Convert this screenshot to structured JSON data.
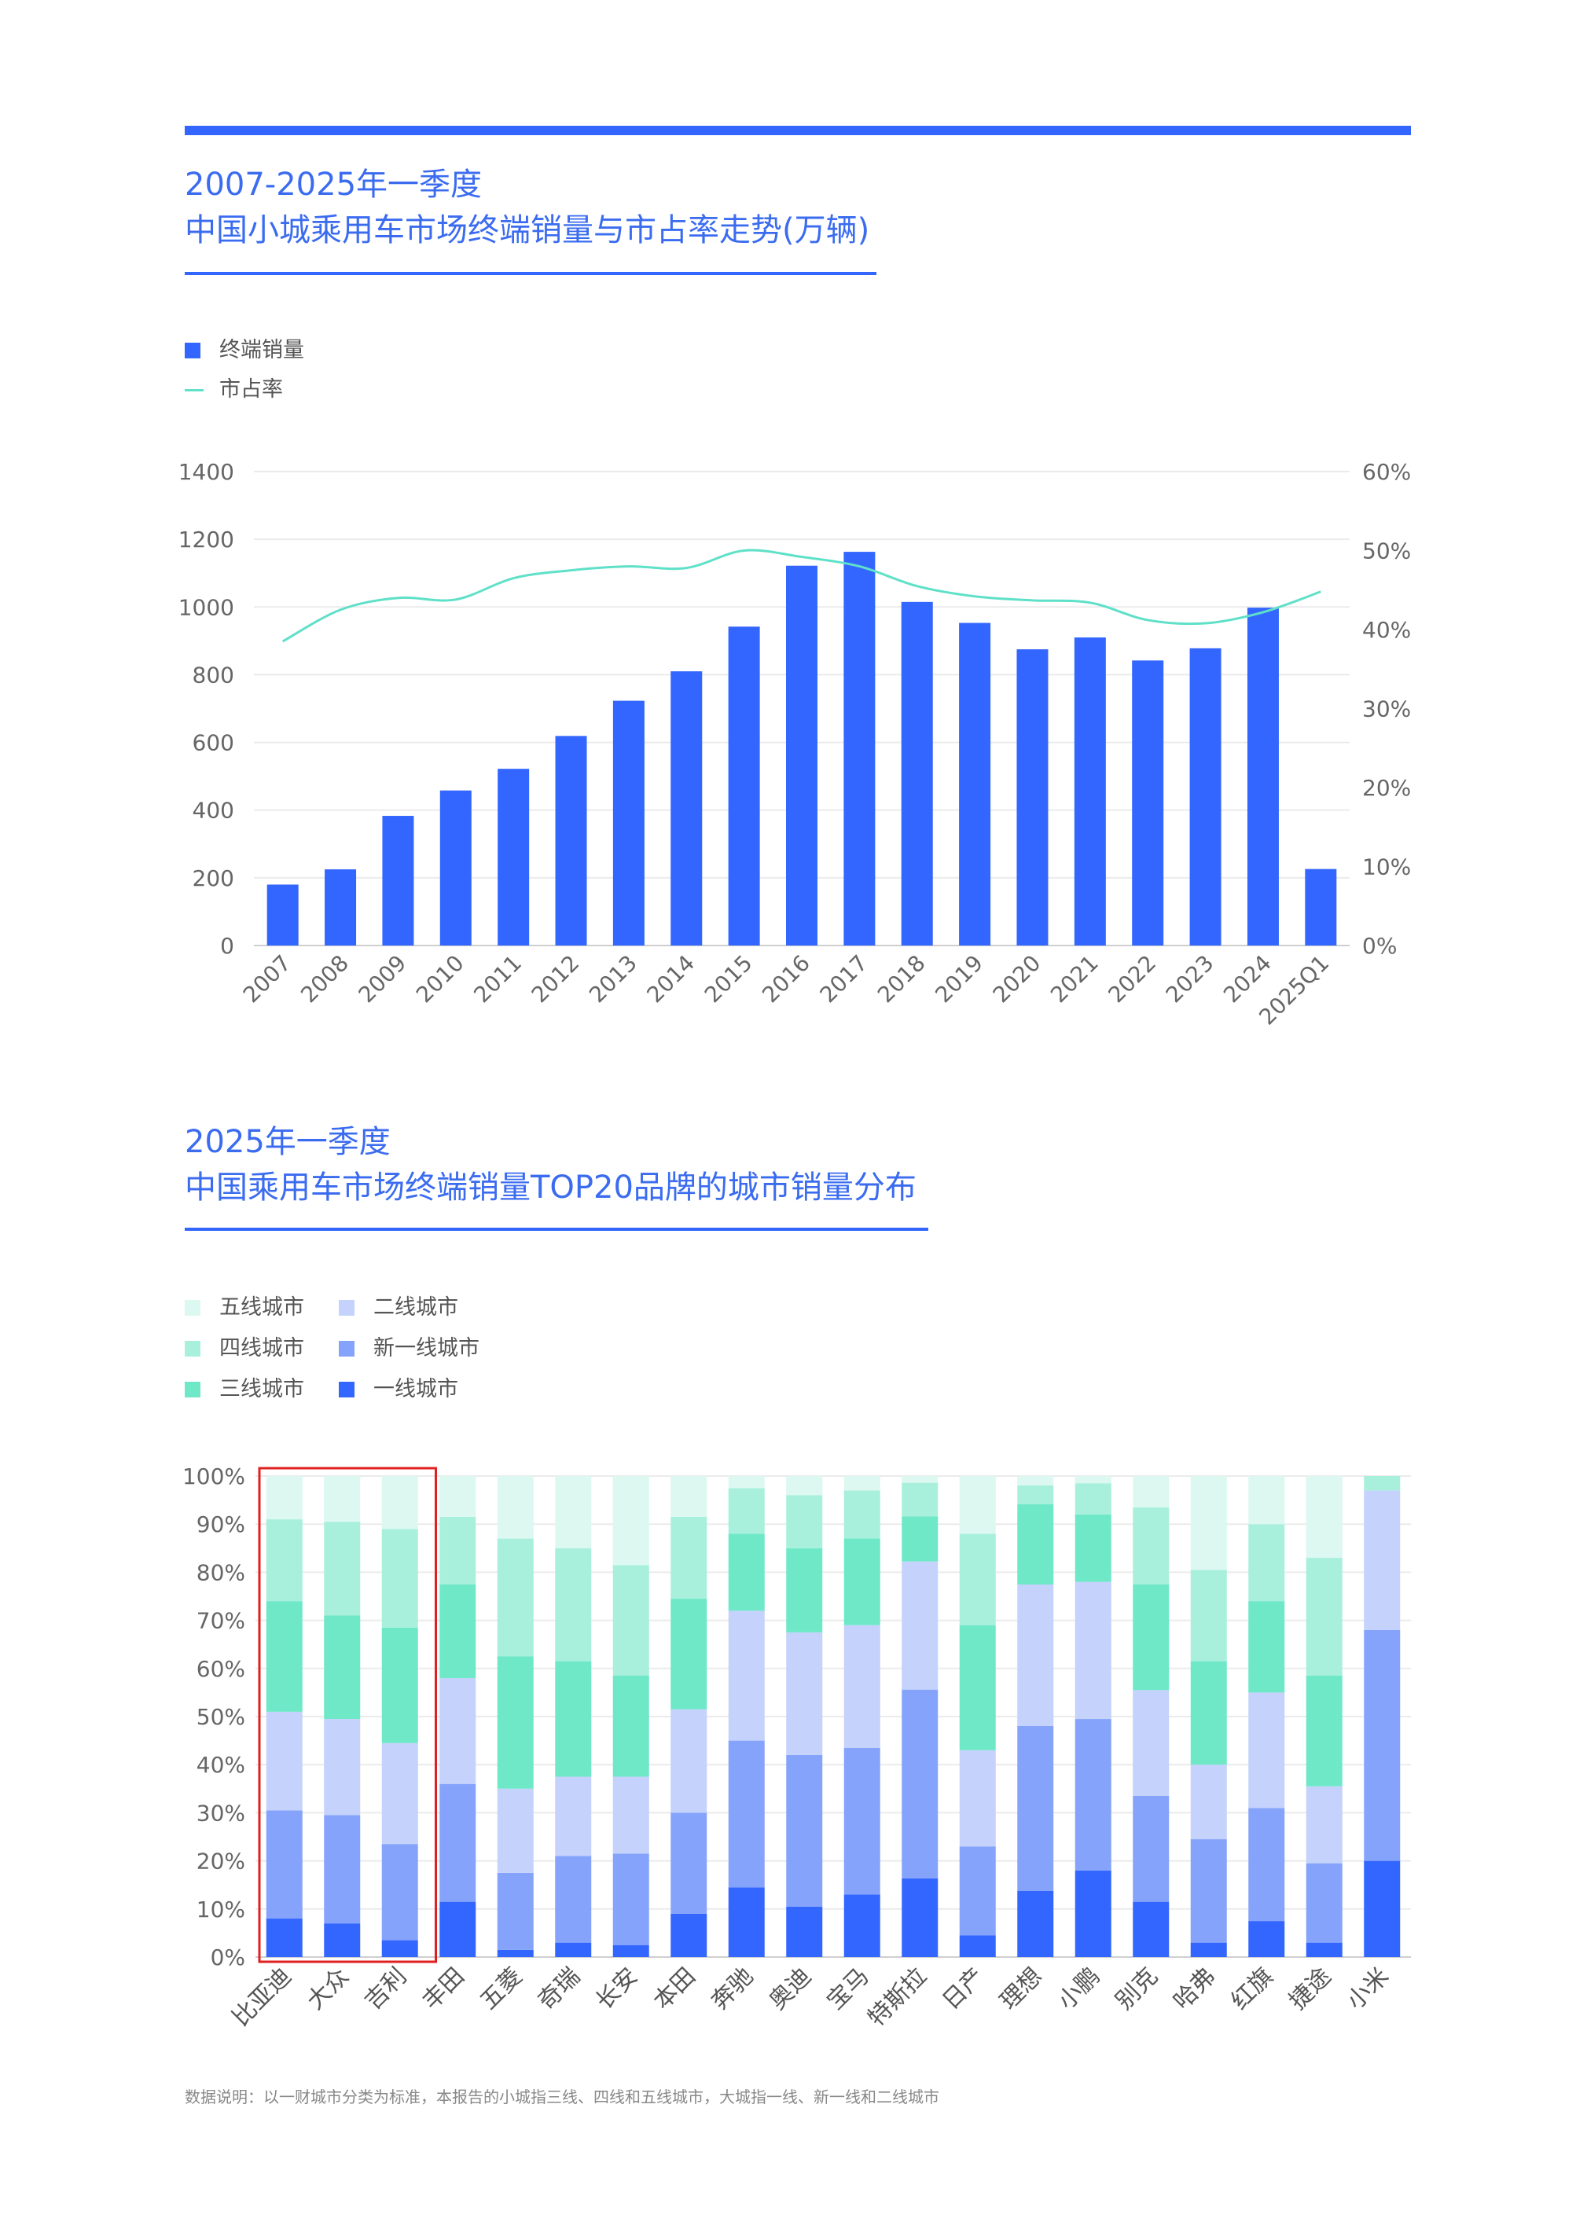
{
  "header": {
    "chart1_title_line1": "2007-2025年一季度",
    "chart1_title_line2": "中国小城乘用车市场终端销量与市占率走势(万辆)",
    "chart2_title_line1": "2025年一季度",
    "chart2_title_line2": "中国乘用车市场终端销量TOP20品牌的城市销量分布"
  },
  "footnote": "数据说明：以一财城市分类为标准，本报告的小城指三线、四线和五线城市，大城指一线、新一线和二线城市",
  "colors": {
    "accent": "#3366ff",
    "bar": "#3366ff",
    "share_line": "#5fe0c8",
    "tier1": "#3366ff",
    "new_tier1": "#85a3fb",
    "tier2": "#c4d2fc",
    "tier3": "#6fe8c8",
    "tier4": "#a8f0dc",
    "tier5": "#dcf8f0",
    "highlight": "#e02020"
  },
  "chart_data": [
    {
      "type": "bar",
      "title": "2007-2025年一季度 中国小城乘用车市场终端销量与市占率走势(万辆)",
      "categories": [
        "2007",
        "2008",
        "2009",
        "2010",
        "2011",
        "2012",
        "2013",
        "2014",
        "2015",
        "2016",
        "2017",
        "2018",
        "2019",
        "2020",
        "2021",
        "2022",
        "2023",
        "2024",
        "2025Q1"
      ],
      "series": [
        {
          "name": "终端销量",
          "type": "bar",
          "axis": "left",
          "values": [
            180,
            225,
            383,
            458,
            522,
            619,
            723,
            810,
            942,
            1122,
            1163,
            1015,
            953,
            875,
            910,
            842,
            878,
            998,
            226
          ]
        },
        {
          "name": "市占率",
          "type": "line",
          "axis": "right",
          "values": [
            38.5,
            42.5,
            44.0,
            43.8,
            46.5,
            47.5,
            48.0,
            47.8,
            50.0,
            49.2,
            48.0,
            45.5,
            44.2,
            43.7,
            43.4,
            41.2,
            40.8,
            42.2,
            44.8
          ]
        }
      ],
      "yticks_left": [
        "0",
        "200",
        "400",
        "600",
        "800",
        "1000",
        "1200",
        "1400"
      ],
      "yticks_right": [
        "0%",
        "10%",
        "20%",
        "30%",
        "40%",
        "50%",
        "60%"
      ],
      "ylim_left": [
        0,
        1400
      ],
      "ylim_right": [
        0,
        60
      ],
      "grid": true,
      "legend": "top-left"
    },
    {
      "type": "bar",
      "stacked": "percent",
      "title": "2025年一季度 中国乘用车市场终端销量TOP20品牌的城市销量分布",
      "categories": [
        "比亚迪",
        "大众",
        "吉利",
        "丰田",
        "五菱",
        "奇瑞",
        "长安",
        "本田",
        "奔驰",
        "奥迪",
        "宝马",
        "特斯拉",
        "日产",
        "理想",
        "小鹏",
        "别克",
        "哈弗",
        "红旗",
        "捷途",
        "小米"
      ],
      "series": [
        {
          "name": "一线城市",
          "values": [
            8,
            7,
            3.5,
            11.5,
            1.5,
            3,
            2.5,
            9,
            14.5,
            10.5,
            13,
            17.5,
            4.5,
            14,
            18,
            11.5,
            3,
            7.5,
            3,
            20
          ]
        },
        {
          "name": "新一线城市",
          "values": [
            22.5,
            22.5,
            20,
            24.5,
            16,
            18,
            19,
            21,
            30.5,
            31.5,
            30.5,
            42,
            18.5,
            35,
            31.5,
            22,
            21.5,
            23.5,
            16.5,
            48
          ]
        },
        {
          "name": "二线城市",
          "values": [
            20.5,
            20,
            21,
            22,
            17.5,
            16.5,
            16,
            21.5,
            27,
            25.5,
            25.5,
            28.5,
            20,
            30,
            28.5,
            22,
            15.5,
            24,
            16,
            29
          ]
        },
        {
          "name": "三线城市",
          "values": [
            23,
            21.5,
            24,
            19.5,
            27.5,
            24,
            21,
            23,
            16,
            17.5,
            18,
            10,
            26,
            17,
            14,
            22,
            21.5,
            19,
            23,
            0
          ]
        },
        {
          "name": "四线城市",
          "values": [
            17,
            19.5,
            20.5,
            14,
            24.5,
            23.5,
            23,
            17,
            9.5,
            11,
            10,
            7.5,
            19,
            4,
            6.5,
            16,
            19,
            16,
            24.5,
            3
          ]
        },
        {
          "name": "五线城市",
          "values": [
            9,
            9.5,
            11,
            8.5,
            13,
            15,
            18.5,
            8.5,
            2.5,
            4,
            3,
            1.5,
            12,
            2,
            1.5,
            6.5,
            19.5,
            10,
            17,
            0
          ]
        }
      ],
      "yticks": [
        "0%",
        "10%",
        "20%",
        "30%",
        "40%",
        "50%",
        "60%",
        "70%",
        "80%",
        "90%",
        "100%"
      ],
      "ylim": [
        0,
        100
      ],
      "grid": true,
      "legend": "top-left",
      "highlighted_categories": [
        "比亚迪",
        "大众",
        "吉利"
      ]
    }
  ]
}
